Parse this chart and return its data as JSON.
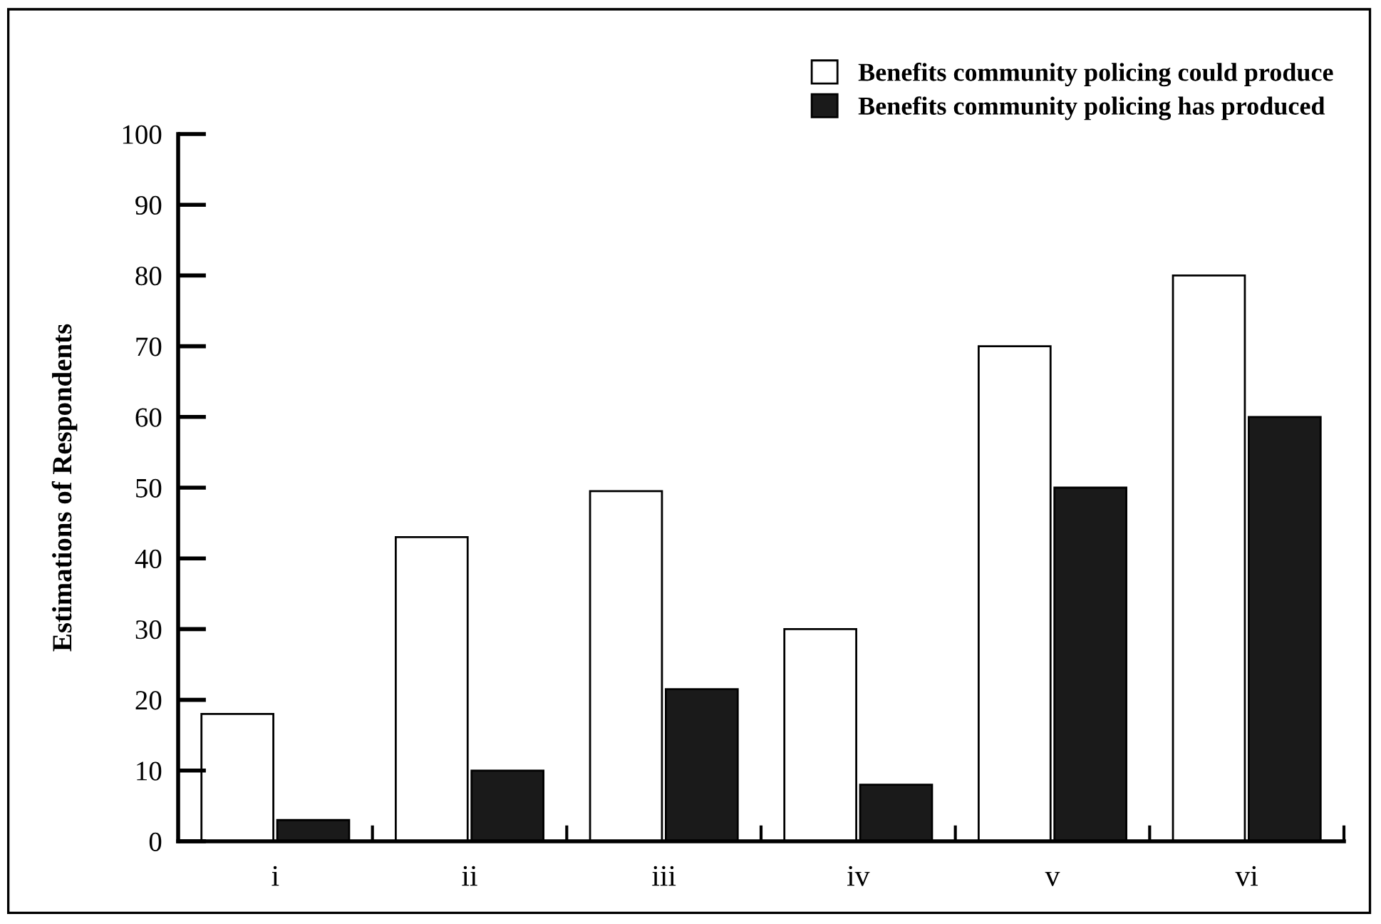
{
  "chart_data": {
    "type": "bar",
    "ylabel": "Estimations of Respondents",
    "categories": [
      "i",
      "ii",
      "iii",
      "iv",
      "v",
      "vi"
    ],
    "series": [
      {
        "name": "Benefits community policing could produce",
        "color": "#ffffff",
        "values": [
          18,
          43,
          49.5,
          30,
          70,
          80
        ]
      },
      {
        "name": "Benefits community policing has produced",
        "color": "#1a1a1a",
        "values": [
          3,
          10,
          21.5,
          8,
          50,
          60
        ]
      }
    ],
    "ylim": [
      0,
      100
    ],
    "yticks": [
      0,
      10,
      20,
      30,
      40,
      50,
      60,
      70,
      80,
      90,
      100
    ],
    "grid": false,
    "legend": "top right"
  }
}
